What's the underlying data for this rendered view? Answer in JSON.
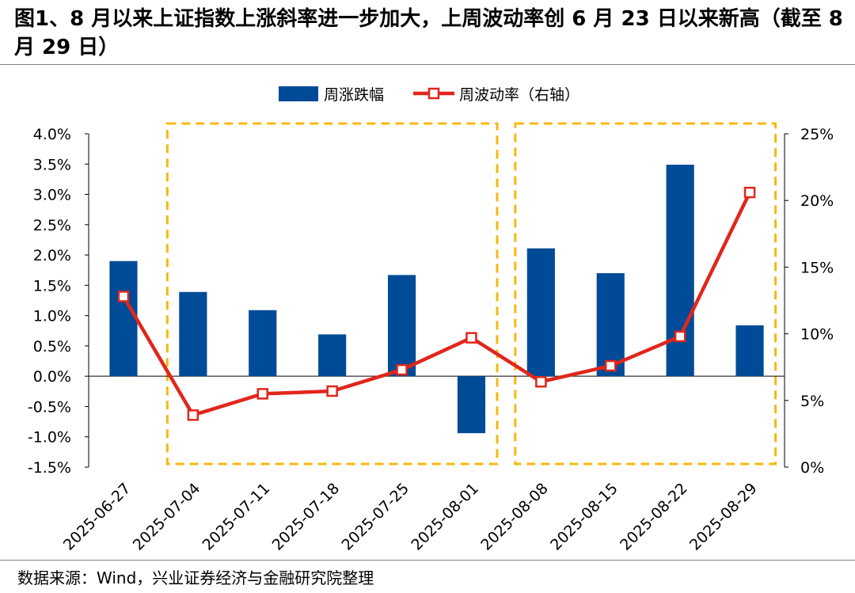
{
  "title": "图1、8 月以来上证指数上涨斜率进一步加大，上周波动率创 6 月 23 日以来新高（截至 8 月 29 日）",
  "source": "数据来源：Wind，兴业证券经济与金融研究院整理",
  "chart_data": {
    "type": "bar+line",
    "categories": [
      "2025-06-27",
      "2025-07-04",
      "2025-07-11",
      "2025-07-18",
      "2025-07-25",
      "2025-08-01",
      "2025-08-08",
      "2025-08-15",
      "2025-08-22",
      "2025-08-29"
    ],
    "series": [
      {
        "name": "周涨跌幅",
        "type": "bar",
        "axis": "left",
        "color": "#004b97",
        "values": [
          1.9,
          1.39,
          1.09,
          0.69,
          1.67,
          -0.94,
          2.11,
          1.7,
          3.49,
          0.84
        ]
      },
      {
        "name": "周波动率（右轴）",
        "type": "line",
        "axis": "right",
        "color": "#e1261c",
        "values": [
          12.8,
          3.9,
          5.5,
          5.7,
          7.3,
          9.7,
          6.4,
          7.6,
          9.8,
          20.6
        ]
      }
    ],
    "left_axis": {
      "min": -1.5,
      "max": 4.0,
      "step": 0.5,
      "ticks": [
        "4.0%",
        "3.5%",
        "3.0%",
        "2.5%",
        "2.0%",
        "1.5%",
        "1.0%",
        "0.5%",
        "0.0%",
        "-0.5%",
        "-1.0%",
        "-1.5%"
      ]
    },
    "right_axis": {
      "min": 0,
      "max": 25,
      "step": 5,
      "ticks": [
        "25%",
        "20%",
        "15%",
        "10%",
        "5%",
        "0%"
      ]
    },
    "highlight_boxes": [
      {
        "from": "2025-07-04",
        "to": "2025-08-01",
        "color": "#f5b90f"
      },
      {
        "from": "2025-08-08",
        "to": "2025-08-29",
        "color": "#f5b90f"
      }
    ],
    "legend_position": "top-center"
  }
}
